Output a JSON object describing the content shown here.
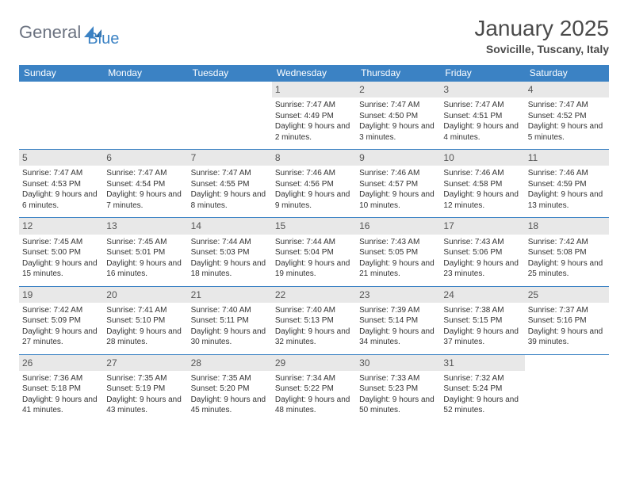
{
  "brand": {
    "name_part1": "General",
    "name_part2": "Blue",
    "logo_fill": "#3b82c4"
  },
  "header": {
    "title": "January 2025",
    "location": "Sovicille, Tuscany, Italy"
  },
  "colors": {
    "header_bg": "#3b82c4",
    "daynum_bg": "#e8e8e8",
    "text": "#333333",
    "border": "#3b82c4"
  },
  "day_names": [
    "Sunday",
    "Monday",
    "Tuesday",
    "Wednesday",
    "Thursday",
    "Friday",
    "Saturday"
  ],
  "weeks": [
    [
      {
        "day": "",
        "empty": true
      },
      {
        "day": "",
        "empty": true
      },
      {
        "day": "",
        "empty": true
      },
      {
        "day": "1",
        "sunrise": "Sunrise: 7:47 AM",
        "sunset": "Sunset: 4:49 PM",
        "daylight": "Daylight: 9 hours and 2 minutes."
      },
      {
        "day": "2",
        "sunrise": "Sunrise: 7:47 AM",
        "sunset": "Sunset: 4:50 PM",
        "daylight": "Daylight: 9 hours and 3 minutes."
      },
      {
        "day": "3",
        "sunrise": "Sunrise: 7:47 AM",
        "sunset": "Sunset: 4:51 PM",
        "daylight": "Daylight: 9 hours and 4 minutes."
      },
      {
        "day": "4",
        "sunrise": "Sunrise: 7:47 AM",
        "sunset": "Sunset: 4:52 PM",
        "daylight": "Daylight: 9 hours and 5 minutes."
      }
    ],
    [
      {
        "day": "5",
        "sunrise": "Sunrise: 7:47 AM",
        "sunset": "Sunset: 4:53 PM",
        "daylight": "Daylight: 9 hours and 6 minutes."
      },
      {
        "day": "6",
        "sunrise": "Sunrise: 7:47 AM",
        "sunset": "Sunset: 4:54 PM",
        "daylight": "Daylight: 9 hours and 7 minutes."
      },
      {
        "day": "7",
        "sunrise": "Sunrise: 7:47 AM",
        "sunset": "Sunset: 4:55 PM",
        "daylight": "Daylight: 9 hours and 8 minutes."
      },
      {
        "day": "8",
        "sunrise": "Sunrise: 7:46 AM",
        "sunset": "Sunset: 4:56 PM",
        "daylight": "Daylight: 9 hours and 9 minutes."
      },
      {
        "day": "9",
        "sunrise": "Sunrise: 7:46 AM",
        "sunset": "Sunset: 4:57 PM",
        "daylight": "Daylight: 9 hours and 10 minutes."
      },
      {
        "day": "10",
        "sunrise": "Sunrise: 7:46 AM",
        "sunset": "Sunset: 4:58 PM",
        "daylight": "Daylight: 9 hours and 12 minutes."
      },
      {
        "day": "11",
        "sunrise": "Sunrise: 7:46 AM",
        "sunset": "Sunset: 4:59 PM",
        "daylight": "Daylight: 9 hours and 13 minutes."
      }
    ],
    [
      {
        "day": "12",
        "sunrise": "Sunrise: 7:45 AM",
        "sunset": "Sunset: 5:00 PM",
        "daylight": "Daylight: 9 hours and 15 minutes."
      },
      {
        "day": "13",
        "sunrise": "Sunrise: 7:45 AM",
        "sunset": "Sunset: 5:01 PM",
        "daylight": "Daylight: 9 hours and 16 minutes."
      },
      {
        "day": "14",
        "sunrise": "Sunrise: 7:44 AM",
        "sunset": "Sunset: 5:03 PM",
        "daylight": "Daylight: 9 hours and 18 minutes."
      },
      {
        "day": "15",
        "sunrise": "Sunrise: 7:44 AM",
        "sunset": "Sunset: 5:04 PM",
        "daylight": "Daylight: 9 hours and 19 minutes."
      },
      {
        "day": "16",
        "sunrise": "Sunrise: 7:43 AM",
        "sunset": "Sunset: 5:05 PM",
        "daylight": "Daylight: 9 hours and 21 minutes."
      },
      {
        "day": "17",
        "sunrise": "Sunrise: 7:43 AM",
        "sunset": "Sunset: 5:06 PM",
        "daylight": "Daylight: 9 hours and 23 minutes."
      },
      {
        "day": "18",
        "sunrise": "Sunrise: 7:42 AM",
        "sunset": "Sunset: 5:08 PM",
        "daylight": "Daylight: 9 hours and 25 minutes."
      }
    ],
    [
      {
        "day": "19",
        "sunrise": "Sunrise: 7:42 AM",
        "sunset": "Sunset: 5:09 PM",
        "daylight": "Daylight: 9 hours and 27 minutes."
      },
      {
        "day": "20",
        "sunrise": "Sunrise: 7:41 AM",
        "sunset": "Sunset: 5:10 PM",
        "daylight": "Daylight: 9 hours and 28 minutes."
      },
      {
        "day": "21",
        "sunrise": "Sunrise: 7:40 AM",
        "sunset": "Sunset: 5:11 PM",
        "daylight": "Daylight: 9 hours and 30 minutes."
      },
      {
        "day": "22",
        "sunrise": "Sunrise: 7:40 AM",
        "sunset": "Sunset: 5:13 PM",
        "daylight": "Daylight: 9 hours and 32 minutes."
      },
      {
        "day": "23",
        "sunrise": "Sunrise: 7:39 AM",
        "sunset": "Sunset: 5:14 PM",
        "daylight": "Daylight: 9 hours and 34 minutes."
      },
      {
        "day": "24",
        "sunrise": "Sunrise: 7:38 AM",
        "sunset": "Sunset: 5:15 PM",
        "daylight": "Daylight: 9 hours and 37 minutes."
      },
      {
        "day": "25",
        "sunrise": "Sunrise: 7:37 AM",
        "sunset": "Sunset: 5:16 PM",
        "daylight": "Daylight: 9 hours and 39 minutes."
      }
    ],
    [
      {
        "day": "26",
        "sunrise": "Sunrise: 7:36 AM",
        "sunset": "Sunset: 5:18 PM",
        "daylight": "Daylight: 9 hours and 41 minutes."
      },
      {
        "day": "27",
        "sunrise": "Sunrise: 7:35 AM",
        "sunset": "Sunset: 5:19 PM",
        "daylight": "Daylight: 9 hours and 43 minutes."
      },
      {
        "day": "28",
        "sunrise": "Sunrise: 7:35 AM",
        "sunset": "Sunset: 5:20 PM",
        "daylight": "Daylight: 9 hours and 45 minutes."
      },
      {
        "day": "29",
        "sunrise": "Sunrise: 7:34 AM",
        "sunset": "Sunset: 5:22 PM",
        "daylight": "Daylight: 9 hours and 48 minutes."
      },
      {
        "day": "30",
        "sunrise": "Sunrise: 7:33 AM",
        "sunset": "Sunset: 5:23 PM",
        "daylight": "Daylight: 9 hours and 50 minutes."
      },
      {
        "day": "31",
        "sunrise": "Sunrise: 7:32 AM",
        "sunset": "Sunset: 5:24 PM",
        "daylight": "Daylight: 9 hours and 52 minutes."
      },
      {
        "day": "",
        "empty": true
      }
    ]
  ]
}
